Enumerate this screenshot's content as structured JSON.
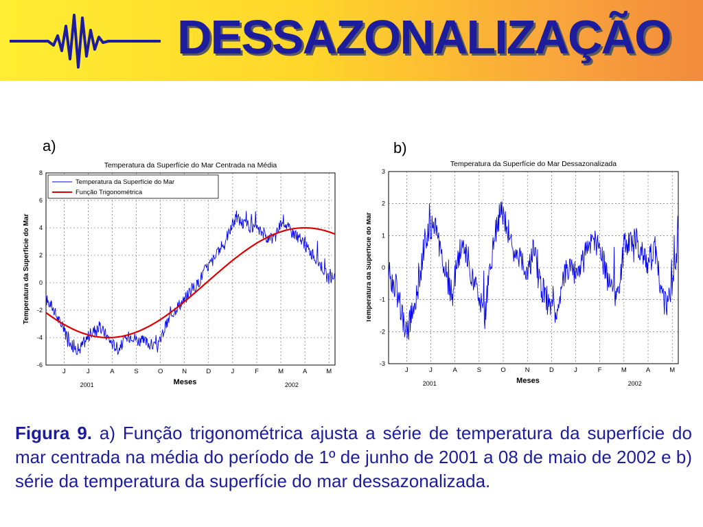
{
  "slide": {
    "title": "DESSAZONALIZAÇÃO"
  },
  "colors": {
    "title": "#1c1c9c",
    "series": "#0000ee",
    "fit": "#dd0000",
    "caption": "#1c1c9c"
  },
  "icons": {
    "logo": "waveform-logo-icon"
  },
  "chart_data": [
    {
      "panel_label": "a)",
      "type": "line",
      "title": "Temperatura da Superfície do Mar Centrada na Média",
      "xlabel": "Meses",
      "ylabel": "Temperatura da Superfície do Mar",
      "ylim": [
        -6,
        8
      ],
      "yticks": [
        "8",
        "6",
        "4",
        "2",
        "0",
        "-2",
        "-4",
        "-6"
      ],
      "xtick_labels": [
        "J",
        "J",
        "A",
        "S",
        "O",
        "N",
        "D",
        "J",
        "F",
        "M",
        "A",
        "M"
      ],
      "year_labels": [
        "2001",
        "2002"
      ],
      "grid": true,
      "legend": [
        "Temperatura da Superfície do Mar",
        "Função Trigonométrica"
      ],
      "legend_position": "top-left",
      "series": [
        {
          "name": "Temperatura da Superfície do Mar",
          "color": "#0000ee",
          "values": [
            -1.2,
            -1.8,
            -2.8,
            -3.6,
            -4.6,
            -4.9,
            -4.2,
            -3.6,
            -3.2,
            -3.7,
            -4.4,
            -4.8,
            -4.2,
            -3.8,
            -4.2,
            -4.3,
            -4.5,
            -4.7,
            -3.4,
            -2.4,
            -1.7,
            -1.3,
            -0.5,
            -0.2,
            0.8,
            1.4,
            2.0,
            2.8,
            3.8,
            4.8,
            4.3,
            4.1,
            3.8,
            3.7,
            3.1,
            3.4,
            4.7,
            3.9,
            3.5,
            3.0,
            2.4,
            1.8,
            1.2,
            0.2,
            0.6
          ]
        },
        {
          "name": "Função Trigonométrica",
          "color": "#dd0000",
          "amplitude": 4.0,
          "type": "sinusoid"
        }
      ]
    },
    {
      "panel_label": "b)",
      "type": "line",
      "title": "Temperatura da Superfície do Mar Dessazonalizada",
      "xlabel": "Meses",
      "ylabel": "Temperatura da Superfície do Mar",
      "ylim": [
        -3,
        3
      ],
      "yticks": [
        "3",
        "2",
        "1",
        "0",
        "-1",
        "-2",
        "-3"
      ],
      "xtick_labels": [
        "J",
        "J",
        "A",
        "S",
        "O",
        "N",
        "D",
        "J",
        "F",
        "M",
        "A",
        "M"
      ],
      "year_labels": [
        "2001",
        "2002"
      ],
      "grid": true,
      "series": [
        {
          "name": "",
          "color": "#0000ee",
          "values": [
            -0.2,
            -0.5,
            -1.2,
            -2.2,
            -1.3,
            -0.5,
            0.8,
            1.2,
            1.1,
            0.3,
            -0.8,
            -0.3,
            0.6,
            0.4,
            -0.4,
            -1.1,
            -1.5,
            0.3,
            1.4,
            1.8,
            1.0,
            0.4,
            0.2,
            -0.2,
            0.5,
            -0.4,
            -0.9,
            -1.4,
            -1.2,
            -0.4,
            0.2,
            -0.3,
            0.1,
            0.6,
            0.9,
            0.7,
            -0.2,
            -0.6,
            -0.9,
            0.6,
            1.0,
            0.8,
            0.5,
            0.2,
            0.7,
            -0.4,
            -1.3,
            -0.6,
            0.7
          ]
        }
      ]
    }
  ],
  "caption": {
    "label": "Figura 9.",
    "text": " a) Função trigonométrica ajusta a série de temperatura da superfície do mar centrada na média do período de 1º de junho de 2001 a 08 de maio de 2002 e b) série da temperatura da superfície do mar dessazonalizada."
  }
}
